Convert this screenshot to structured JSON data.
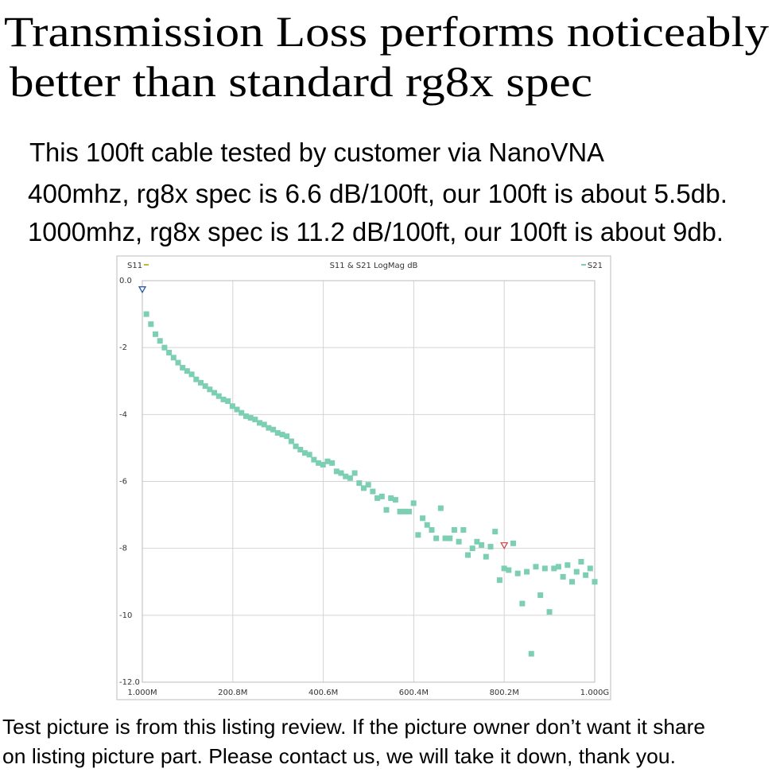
{
  "header": {
    "title_lines": [
      "Transmission Loss performs noticeably",
      "better than standard rg8x spec"
    ],
    "description_lines": [
      "This 100ft cable tested by customer via NanoVNA",
      "400mhz, rg8x spec is 6.6 dB/100ft, our 100ft is about 5.5db.",
      "1000mhz, rg8x spec is 11.2 dB/100ft, our 100ft is about 9db."
    ]
  },
  "chart_data": {
    "type": "scatter",
    "title": "S11 & S21 LogMag dB",
    "xlim": [
      1,
      1000
    ],
    "xticks": [
      {
        "value": 1,
        "label": "1.000M"
      },
      {
        "value": 200.8,
        "label": "200.8M"
      },
      {
        "value": 400.6,
        "label": "400.6M"
      },
      {
        "value": 600.4,
        "label": "600.4M"
      },
      {
        "value": 800.2,
        "label": "800.2M"
      },
      {
        "value": 1000,
        "label": "1.000G"
      }
    ],
    "ylim": [
      -12,
      0
    ],
    "yticks": [
      {
        "value": 0,
        "label": "0.0"
      },
      -2,
      -4,
      -6,
      -8,
      -10,
      {
        "value": -12,
        "label": "-12.0"
      }
    ],
    "grid": true,
    "series": [
      {
        "name": "S11",
        "color": "#c8b43c",
        "x": [],
        "values": []
      },
      {
        "name": "S21",
        "color": "#7ccfb3",
        "x": [
          10,
          20,
          30,
          40,
          50,
          60,
          70,
          80,
          90,
          100,
          110,
          120,
          130,
          140,
          150,
          160,
          170,
          180,
          190,
          200,
          210,
          220,
          230,
          240,
          250,
          260,
          270,
          280,
          290,
          300,
          310,
          320,
          330,
          340,
          350,
          360,
          370,
          380,
          390,
          400,
          410,
          420,
          430,
          440,
          450,
          460,
          470,
          480,
          490,
          500,
          510,
          520,
          530,
          540,
          550,
          560,
          570,
          580,
          590,
          600,
          610,
          620,
          630,
          640,
          650,
          660,
          670,
          680,
          690,
          700,
          710,
          720,
          730,
          740,
          750,
          760,
          770,
          780,
          790,
          800,
          810,
          820,
          830,
          840,
          850,
          860,
          870,
          880,
          890,
          900,
          910,
          920,
          930,
          940,
          950,
          960,
          970,
          980,
          990,
          1000
        ],
        "values": [
          -1.0,
          -1.3,
          -1.6,
          -1.8,
          -2.0,
          -2.15,
          -2.3,
          -2.45,
          -2.6,
          -2.7,
          -2.8,
          -2.95,
          -3.05,
          -3.15,
          -3.25,
          -3.35,
          -3.45,
          -3.55,
          -3.6,
          -3.75,
          -3.85,
          -3.95,
          -4.05,
          -4.1,
          -4.15,
          -4.25,
          -4.3,
          -4.4,
          -4.45,
          -4.55,
          -4.6,
          -4.65,
          -4.8,
          -4.95,
          -5.05,
          -5.15,
          -5.2,
          -5.35,
          -5.45,
          -5.5,
          -5.4,
          -5.45,
          -5.7,
          -5.75,
          -5.85,
          -5.9,
          -5.75,
          -6.05,
          -6.2,
          -6.1,
          -6.3,
          -6.5,
          -6.45,
          -6.85,
          -6.5,
          -6.55,
          -6.9,
          -6.9,
          -6.9,
          -6.65,
          -7.6,
          -7.1,
          -7.3,
          -7.45,
          -7.7,
          -6.8,
          -7.7,
          -7.7,
          -7.45,
          -7.8,
          -7.45,
          -8.2,
          -8.0,
          -7.8,
          -7.9,
          -8.25,
          -7.95,
          -7.5,
          -8.95,
          -8.6,
          -8.65,
          -7.85,
          -8.75,
          -9.65,
          -8.7,
          -11.15,
          -8.55,
          -9.4,
          -8.6,
          -9.9,
          -8.6,
          -8.55,
          -8.85,
          -8.5,
          -9.0,
          -8.7,
          -8.4,
          -8.8,
          -8.6,
          -9.0
        ]
      }
    ],
    "markers": [
      {
        "x": 1,
        "value": -0.35,
        "color": "#1f4fa0"
      },
      {
        "x": 800.2,
        "value": -8.0,
        "color": "#d04040"
      }
    ]
  },
  "footer": {
    "lines": [
      "Test picture is from this listing review. If the picture owner don’t want it share",
      "on listing picture part. Please contact us, we will take it down, thank you."
    ]
  }
}
